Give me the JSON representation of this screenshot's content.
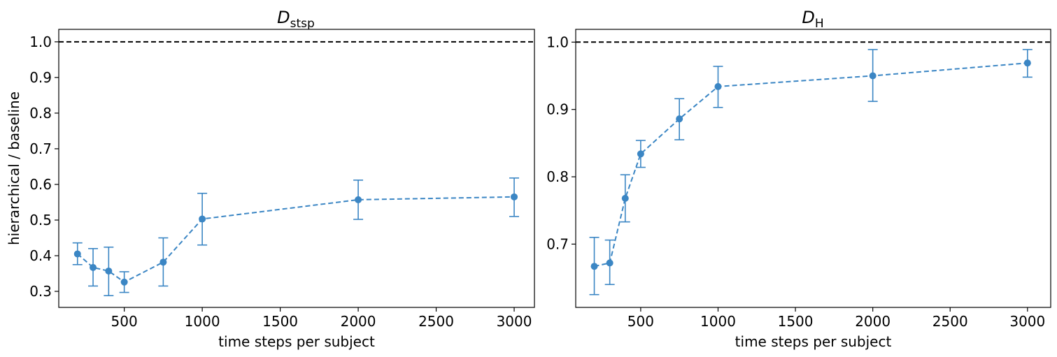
{
  "chart_data": [
    {
      "type": "line",
      "title": "D",
      "title_subscript": "stsp",
      "title_subscript_italic": false,
      "xlabel": "time steps per subject",
      "ylabel": "hierarchical / baseline",
      "xlim": [
        80,
        3130
      ],
      "ylim": [
        0.255,
        1.035
      ],
      "xticks": [
        500,
        1000,
        1500,
        2000,
        2500,
        3000
      ],
      "yticks": [
        0.3,
        0.4,
        0.5,
        0.6,
        0.7,
        0.8,
        0.9,
        1.0
      ],
      "reference_line": 1.0,
      "grid": false,
      "series": [
        {
          "color": "#3b86c4",
          "line_style": "dashed",
          "marker": "circle",
          "x": [
            200,
            300,
            400,
            500,
            750,
            1000,
            2000,
            3000
          ],
          "y": [
            0.405,
            0.367,
            0.357,
            0.326,
            0.382,
            0.503,
            0.557,
            0.565
          ],
          "yerr_low": [
            0.375,
            0.315,
            0.288,
            0.297,
            0.315,
            0.43,
            0.502,
            0.51
          ],
          "yerr_high": [
            0.436,
            0.42,
            0.424,
            0.355,
            0.45,
            0.575,
            0.612,
            0.618
          ]
        }
      ]
    },
    {
      "type": "line",
      "title": "D",
      "title_subscript": "H",
      "title_subscript_italic": true,
      "xlabel": "time steps per subject",
      "ylabel": "",
      "xlim": [
        80,
        3150
      ],
      "ylim": [
        0.606,
        1.019
      ],
      "xticks": [
        500,
        1000,
        1500,
        2000,
        2500,
        3000
      ],
      "yticks": [
        0.7,
        0.8,
        0.9,
        1.0
      ],
      "reference_line": 1.0,
      "grid": false,
      "series": [
        {
          "color": "#3b86c4",
          "line_style": "dashed",
          "marker": "circle",
          "x": [
            200,
            300,
            400,
            500,
            750,
            1000,
            2000,
            3000
          ],
          "y": [
            0.667,
            0.672,
            0.768,
            0.834,
            0.886,
            0.934,
            0.95,
            0.969
          ],
          "yerr_low": [
            0.625,
            0.64,
            0.733,
            0.814,
            0.855,
            0.903,
            0.912,
            0.948
          ],
          "yerr_high": [
            0.71,
            0.706,
            0.803,
            0.854,
            0.916,
            0.964,
            0.989,
            0.989
          ]
        }
      ]
    }
  ]
}
